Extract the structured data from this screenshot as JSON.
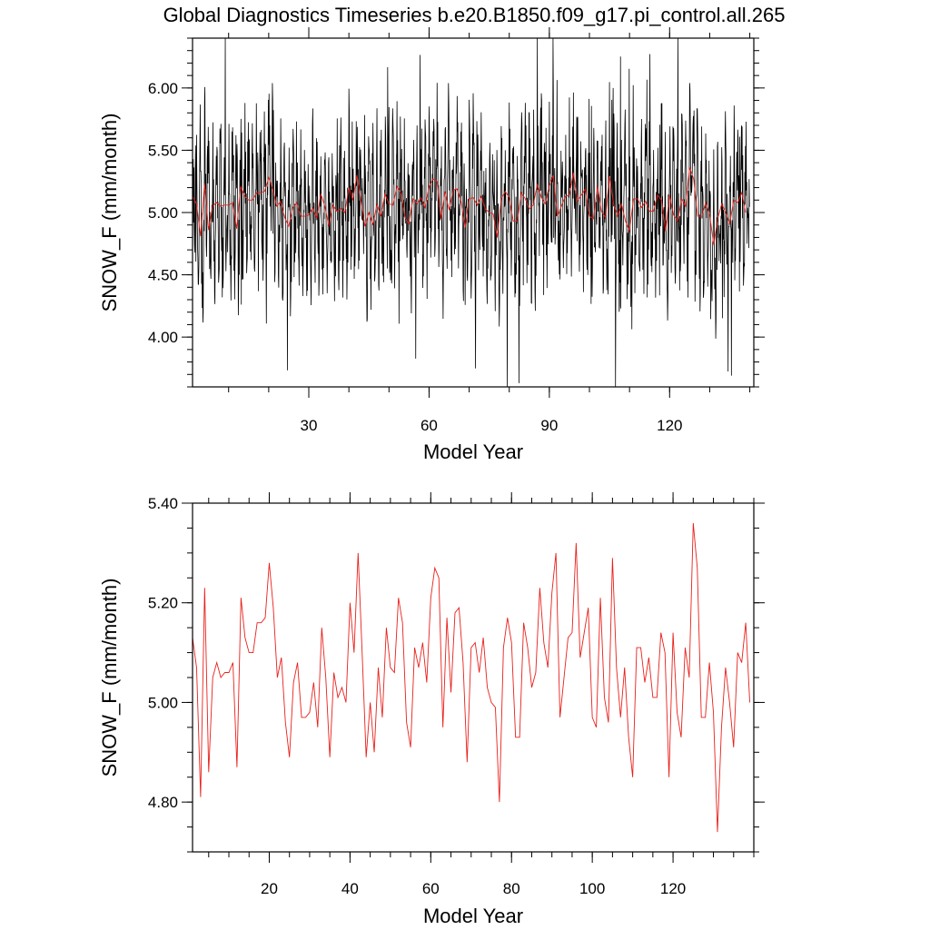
{
  "title": "Global Diagnostics Timeseries b.e20.B1850.f09_g17.pi_control.all.265",
  "colors": {
    "monthly": "#000000",
    "annual": "#e8201a"
  },
  "chart_data": [
    {
      "type": "line",
      "xlabel": "Model Year",
      "ylabel": "SNOW_F (mm/month)",
      "xlim": [
        1,
        141
      ],
      "ylim": [
        3.6,
        6.4
      ],
      "xticks": [
        30,
        60,
        90,
        120
      ],
      "xtick_labels": [
        "30",
        "60",
        "90",
        "120"
      ],
      "yticks": [
        4.0,
        4.5,
        5.0,
        5.5,
        6.0
      ],
      "ytick_labels": [
        "4.00",
        "4.50",
        "5.00",
        "5.50",
        "6.00"
      ],
      "series": [
        {
          "name": "",
          "style": "monthly",
          "amplitude": 0.55,
          "note": "monthly values, ~12 per model year, oscillating ~4.0 to 6.3"
        },
        {
          "name": "",
          "style": "annual",
          "source": "annual"
        }
      ]
    },
    {
      "type": "line",
      "xlabel": "Model Year",
      "ylabel": "SNOW_F (mm/month)",
      "xlim": [
        1,
        140
      ],
      "ylim": [
        4.7,
        5.4
      ],
      "xticks": [
        20,
        40,
        60,
        80,
        100,
        120
      ],
      "xtick_labels": [
        "20",
        "40",
        "60",
        "80",
        "100",
        "120"
      ],
      "yticks": [
        4.8,
        5.0,
        5.2,
        5.4
      ],
      "ytick_labels": [
        "4.80",
        "5.00",
        "5.20",
        "5.40"
      ],
      "series": [
        {
          "name": "",
          "style": "annual",
          "source": "annual"
        }
      ]
    }
  ],
  "annual": {
    "x_start": 1,
    "values": [
      5.13,
      5.07,
      4.81,
      5.23,
      4.86,
      5.05,
      5.08,
      5.05,
      5.06,
      5.06,
      5.08,
      4.87,
      5.21,
      5.13,
      5.1,
      5.1,
      5.16,
      5.16,
      5.17,
      5.28,
      5.19,
      5.05,
      5.09,
      4.96,
      4.89,
      5.04,
      5.08,
      4.97,
      4.97,
      4.98,
      5.04,
      4.95,
      5.15,
      5.05,
      4.89,
      5.06,
      5.01,
      5.03,
      5.0,
      5.2,
      5.1,
      5.3,
      5.1,
      4.89,
      5.0,
      4.9,
      5.07,
      4.97,
      5.15,
      5.07,
      5.06,
      5.21,
      5.16,
      4.96,
      4.91,
      5.11,
      5.07,
      5.12,
      5.04,
      5.21,
      5.27,
      5.25,
      4.95,
      5.17,
      5.02,
      5.18,
      5.19,
      5.08,
      4.88,
      5.11,
      5.12,
      5.06,
      5.13,
      5.03,
      5.0,
      4.99,
      4.8,
      5.11,
      5.17,
      5.12,
      4.93,
      4.93,
      5.16,
      5.11,
      5.03,
      5.06,
      5.23,
      5.12,
      5.07,
      5.22,
      5.3,
      4.97,
      5.05,
      5.13,
      5.14,
      5.32,
      5.09,
      5.14,
      5.19,
      4.97,
      4.95,
      5.21,
      5.01,
      4.96,
      5.29,
      5.07,
      4.97,
      5.07,
      4.93,
      4.85,
      5.11,
      5.11,
      5.04,
      5.09,
      5.01,
      5.01,
      5.14,
      5.1,
      4.85,
      5.14,
      4.98,
      4.93,
      5.11,
      5.05,
      5.36,
      5.27,
      4.97,
      4.97,
      5.08,
      4.98,
      4.74,
      4.95,
      5.07,
      5.0,
      4.91,
      5.1,
      5.08,
      5.16,
      5.0
    ]
  }
}
